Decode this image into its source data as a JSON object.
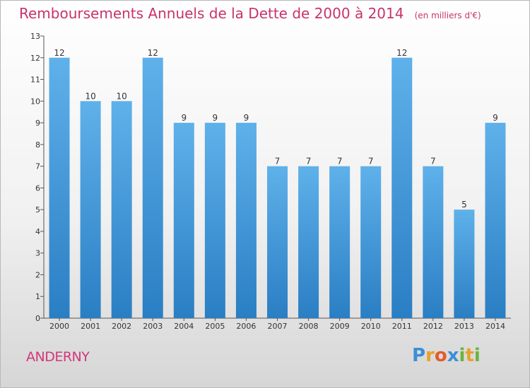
{
  "header": {
    "title": "Remboursements Annuels de la Dette de 2000 à 2014",
    "unit": "(en milliers d'€)"
  },
  "footer": {
    "commune": "ANDERNY",
    "brand": "Proxiti",
    "brand_letters": [
      {
        "ch": "P",
        "color": "#3a8fd6"
      },
      {
        "ch": "r",
        "color": "#e8a12a"
      },
      {
        "ch": "o",
        "color": "#e35c2a"
      },
      {
        "ch": "x",
        "color": "#3a8fd6"
      },
      {
        "ch": "i",
        "color": "#6cb33f"
      },
      {
        "ch": "t",
        "color": "#e8a12a"
      },
      {
        "ch": "i",
        "color": "#6cb33f"
      }
    ]
  },
  "colors": {
    "bar_top": "#5fb1ea",
    "bar_bottom": "#2a7ec3",
    "title": "#c8336b"
  },
  "chart_data": {
    "type": "bar",
    "categories": [
      "2000",
      "2001",
      "2002",
      "2003",
      "2004",
      "2005",
      "2006",
      "2007",
      "2008",
      "2009",
      "2010",
      "2011",
      "2012",
      "2013",
      "2014"
    ],
    "values": [
      12,
      10,
      10,
      12,
      9,
      9,
      9,
      7,
      7,
      7,
      7,
      12,
      7,
      5,
      9
    ],
    "ylim": [
      0,
      13
    ],
    "yticks": [
      "0",
      "1",
      "2",
      "3",
      "4",
      "5",
      "6",
      "7",
      "8",
      "9",
      "10",
      "11",
      "12",
      "13"
    ],
    "data_labels": [
      "12",
      "10",
      "10",
      "12",
      "9",
      "9",
      "9",
      "7",
      "7",
      "7",
      "7",
      "12",
      "7",
      "5",
      "9"
    ],
    "grid": false,
    "legend": "none"
  }
}
